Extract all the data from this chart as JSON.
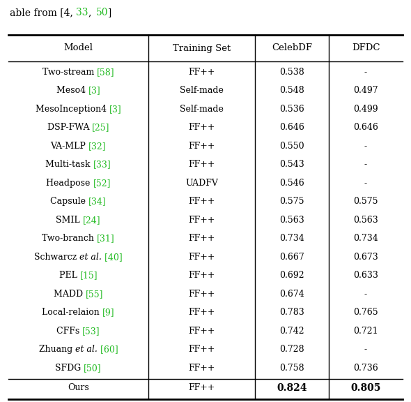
{
  "columns": [
    "Model",
    "Training Set",
    "CelebDF",
    "DFDC"
  ],
  "rows": [
    {
      "model": "Two-stream",
      "ref": "[58]",
      "italic_parts": [],
      "training": "FF++",
      "celebdf": "0.538",
      "dfdc": "-"
    },
    {
      "model": "Meso4",
      "ref": "[3]",
      "italic_parts": [],
      "training": "Self-made",
      "celebdf": "0.548",
      "dfdc": "0.497"
    },
    {
      "model": "MesoInception4",
      "ref": "[3]",
      "italic_parts": [],
      "training": "Self-made",
      "celebdf": "0.536",
      "dfdc": "0.499"
    },
    {
      "model": "DSP-FWA",
      "ref": "[25]",
      "italic_parts": [],
      "training": "FF++",
      "celebdf": "0.646",
      "dfdc": "0.646"
    },
    {
      "model": "VA-MLP",
      "ref": "[32]",
      "italic_parts": [],
      "training": "FF++",
      "celebdf": "0.550",
      "dfdc": "-"
    },
    {
      "model": "Multi-task",
      "ref": "[33]",
      "italic_parts": [],
      "training": "FF++",
      "celebdf": "0.543",
      "dfdc": "-"
    },
    {
      "model": "Headpose",
      "ref": "[52]",
      "italic_parts": [],
      "training": "UADFV",
      "celebdf": "0.546",
      "dfdc": "-"
    },
    {
      "model": "Capsule",
      "ref": "[34]",
      "italic_parts": [],
      "training": "FF++",
      "celebdf": "0.575",
      "dfdc": "0.575"
    },
    {
      "model": "SMIL",
      "ref": "[24]",
      "italic_parts": [],
      "training": "FF++",
      "celebdf": "0.563",
      "dfdc": "0.563"
    },
    {
      "model": "Two-branch",
      "ref": "[31]",
      "italic_parts": [],
      "training": "FF++",
      "celebdf": "0.734",
      "dfdc": "0.734"
    },
    {
      "model": "Schwarcz ",
      "ref": "[40]",
      "italic_parts": [
        "et al."
      ],
      "training": "FF++",
      "celebdf": "0.667",
      "dfdc": "0.673"
    },
    {
      "model": "PEL",
      "ref": "[15]",
      "italic_parts": [],
      "training": "FF++",
      "celebdf": "0.692",
      "dfdc": "0.633"
    },
    {
      "model": "MADD",
      "ref": "[55]",
      "italic_parts": [],
      "training": "FF++",
      "celebdf": "0.674",
      "dfdc": "-"
    },
    {
      "model": "Local-relaion",
      "ref": "[9]",
      "italic_parts": [],
      "training": "FF++",
      "celebdf": "0.783",
      "dfdc": "0.765"
    },
    {
      "model": "CFFs",
      "ref": "[53]",
      "italic_parts": [],
      "training": "FF++",
      "celebdf": "0.742",
      "dfdc": "0.721"
    },
    {
      "model": "Zhuang ",
      "ref": "[60]",
      "italic_parts": [
        "et al."
      ],
      "training": "FF++",
      "celebdf": "0.728",
      "dfdc": "-"
    },
    {
      "model": "SFDG",
      "ref": "[50]",
      "italic_parts": [],
      "training": "FF++",
      "celebdf": "0.758",
      "dfdc": "0.736"
    }
  ],
  "last_row": {
    "model": "Ours",
    "training": "FF++",
    "celebdf": "0.824",
    "dfdc": "0.805"
  },
  "ref_color": "#22bb22",
  "font_size": 9.0,
  "header_font_size": 9.5,
  "background_color": "#ffffff",
  "title_parts": [
    {
      "text": "able from [4, ",
      "color": "#000000",
      "italic": false
    },
    {
      "text": "33",
      "color": "#22bb22",
      "italic": false
    },
    {
      "text": ", ",
      "color": "#000000",
      "italic": false
    },
    {
      "text": "50",
      "color": "#22bb22",
      "italic": false
    },
    {
      "text": "]",
      "color": "#000000",
      "italic": false
    }
  ]
}
